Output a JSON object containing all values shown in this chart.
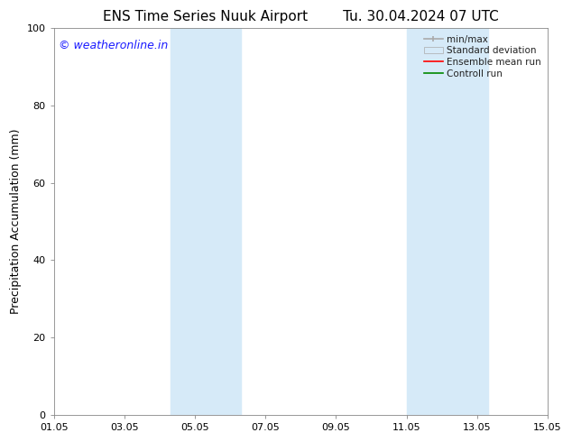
{
  "title_left": "ENS Time Series Nuuk Airport",
  "title_right": "Tu. 30.04.2024 07 UTC",
  "ylabel": "Precipitation Accumulation (mm)",
  "ylim": [
    0,
    100
  ],
  "yticks": [
    0,
    20,
    40,
    60,
    80,
    100
  ],
  "xlim": [
    0,
    14
  ],
  "xtick_labels": [
    "01.05",
    "03.05",
    "05.05",
    "07.05",
    "09.05",
    "11.05",
    "13.05",
    "15.05"
  ],
  "xtick_positions": [
    0,
    2,
    4,
    6,
    8,
    10,
    12,
    14
  ],
  "shading_bands": [
    {
      "x_start": 3.3,
      "x_end": 5.3,
      "color": "#d6eaf8",
      "alpha": 1.0
    },
    {
      "x_start": 10.0,
      "x_end": 12.3,
      "color": "#d6eaf8",
      "alpha": 1.0
    }
  ],
  "watermark_text": "© weatheronline.in",
  "watermark_color": "#1a1aff",
  "watermark_fontsize": 9,
  "bg_color": "#ffffff",
  "legend_entries": [
    {
      "label": "min/max",
      "color": "#aaaaaa",
      "lw": 1.2,
      "style": "minmax"
    },
    {
      "label": "Standard deviation",
      "color": "#d6eaf8",
      "lw": 6,
      "style": "bar"
    },
    {
      "label": "Ensemble mean run",
      "color": "#ff0000",
      "lw": 1.2,
      "style": "line"
    },
    {
      "label": "Controll run",
      "color": "#008800",
      "lw": 1.2,
      "style": "line"
    }
  ],
  "title_fontsize": 11,
  "tick_fontsize": 8,
  "ylabel_fontsize": 9,
  "legend_fontsize": 7.5
}
